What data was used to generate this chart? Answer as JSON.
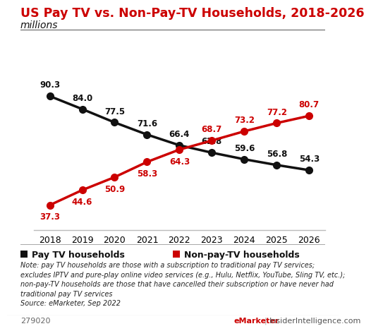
{
  "title": "US Pay TV vs. Non-Pay-TV Households, 2018-2026",
  "subtitle": "millions",
  "years": [
    2018,
    2019,
    2020,
    2021,
    2022,
    2023,
    2024,
    2025,
    2026
  ],
  "pay_tv": [
    90.3,
    84.0,
    77.5,
    71.6,
    66.4,
    62.8,
    59.6,
    56.8,
    54.3
  ],
  "non_pay_tv": [
    37.3,
    44.6,
    50.9,
    58.3,
    64.3,
    68.7,
    73.2,
    77.2,
    80.7
  ],
  "pay_tv_color": "#111111",
  "non_pay_tv_color": "#cc0000",
  "title_color": "#cc0000",
  "subtitle_color": "#111111",
  "background_color": "#ffffff",
  "legend_pay_tv": "Pay TV households",
  "legend_non_pay_tv": "Non-pay-TV households",
  "note_text": "Note: pay TV households are those with a subscription to traditional pay TV services;\nexcludes IPTV and pure-play online video services (e.g., Hulu, Netflix, YouTube, Sling TV, etc.);\nnon-pay-TV households are those that have cancelled their subscription or have never had\ntraditional pay TV services\nSource: eMarketer, Sep 2022",
  "footer_id": "279020",
  "footer_brand": "eMarketer",
  "footer_site": "InsiderIntelligence.com",
  "ylim": [
    25,
    100
  ],
  "pay_tv_label_yoff": [
    7,
    7,
    7,
    7,
    7,
    7,
    7,
    7,
    7
  ],
  "pay_tv_label_va": [
    "bottom",
    "bottom",
    "bottom",
    "bottom",
    "bottom",
    "bottom",
    "bottom",
    "bottom",
    "bottom"
  ],
  "non_pay_tv_label_yoff": [
    -7,
    -7,
    -7,
    -7,
    -7,
    7,
    7,
    7,
    7
  ],
  "non_pay_tv_label_va": [
    "top",
    "top",
    "top",
    "top",
    "top",
    "bottom",
    "bottom",
    "bottom",
    "bottom"
  ]
}
